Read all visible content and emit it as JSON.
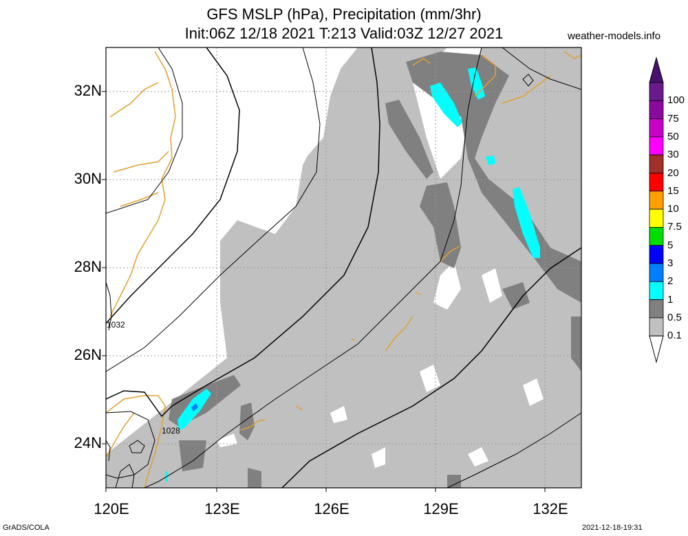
{
  "title": {
    "line1": "GFS MSLP (hPa), Precipitation (mm/3hr)",
    "line2": "Init:06Z 12/18 2021 T:213 Valid:03Z 12/27 2021"
  },
  "source": "weather-models.info",
  "footer": {
    "left": "GrADS/COLA",
    "right": "2021-12-18-19:31"
  },
  "map": {
    "lon_range": [
      120,
      133
    ],
    "lat_range": [
      23,
      33
    ],
    "lat_ticks": [
      "32N",
      "30N",
      "28N",
      "26N",
      "24N"
    ],
    "lon_ticks": [
      "120E",
      "123E",
      "126E",
      "129E",
      "132E"
    ],
    "isobar_labels": [
      "1032",
      "1028"
    ],
    "coastline_color": "#e0a030"
  },
  "colorbar": {
    "labels": [
      "100",
      "75",
      "50",
      "30",
      "20",
      "15",
      "10",
      "7.5",
      "5",
      "3",
      "2",
      "1",
      "0.5",
      "0.1"
    ],
    "colors": [
      "#6a1a8a",
      "#8a0aa0",
      "#c800c8",
      "#ff00ff",
      "#a0302a",
      "#ff0000",
      "#ffa000",
      "#ffff00",
      "#00dd00",
      "#0000ff",
      "#0080ff",
      "#00ffff",
      "#808080",
      "#c0c0c0"
    ],
    "top_triangle_color": "#4a1070",
    "bottom_triangle_color": "#ffffff"
  }
}
